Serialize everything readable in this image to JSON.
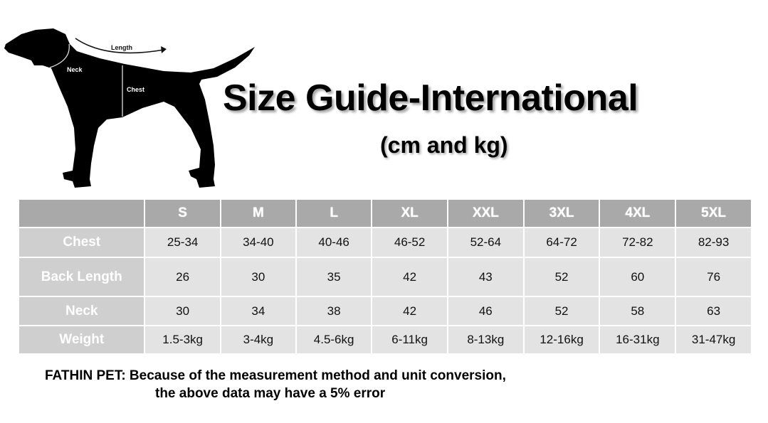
{
  "title": "Size Guide-International",
  "subtitle": "(cm and kg)",
  "diagram": {
    "length_label": "Length",
    "neck_label": "Neck",
    "chest_label": "Chest"
  },
  "table": {
    "columns": [
      "",
      "S",
      "M",
      "L",
      "XL",
      "XXL",
      "3XL",
      "4XL",
      "5XL"
    ],
    "rows": [
      {
        "label": "Chest",
        "values": [
          "25-34",
          "34-40",
          "40-46",
          "46-52",
          "52-64",
          "64-72",
          "72-82",
          "82-93"
        ]
      },
      {
        "label": "Back Length",
        "values": [
          "26",
          "30",
          "35",
          "42",
          "43",
          "52",
          "60",
          "76"
        ]
      },
      {
        "label": "Neck",
        "values": [
          "30",
          "34",
          "38",
          "42",
          "46",
          "52",
          "58",
          "63"
        ]
      },
      {
        "label": "Weight",
        "values": [
          "1.5-3kg",
          "3-4kg",
          "4.5-6kg",
          "6-11kg",
          "8-13kg",
          "12-16kg",
          "16-31kg",
          "31-47kg"
        ]
      }
    ]
  },
  "note": {
    "line1": "FATHIN PET: Because of the measurement method and unit conversion,",
    "line2": "the above data may have a 5% error"
  }
}
